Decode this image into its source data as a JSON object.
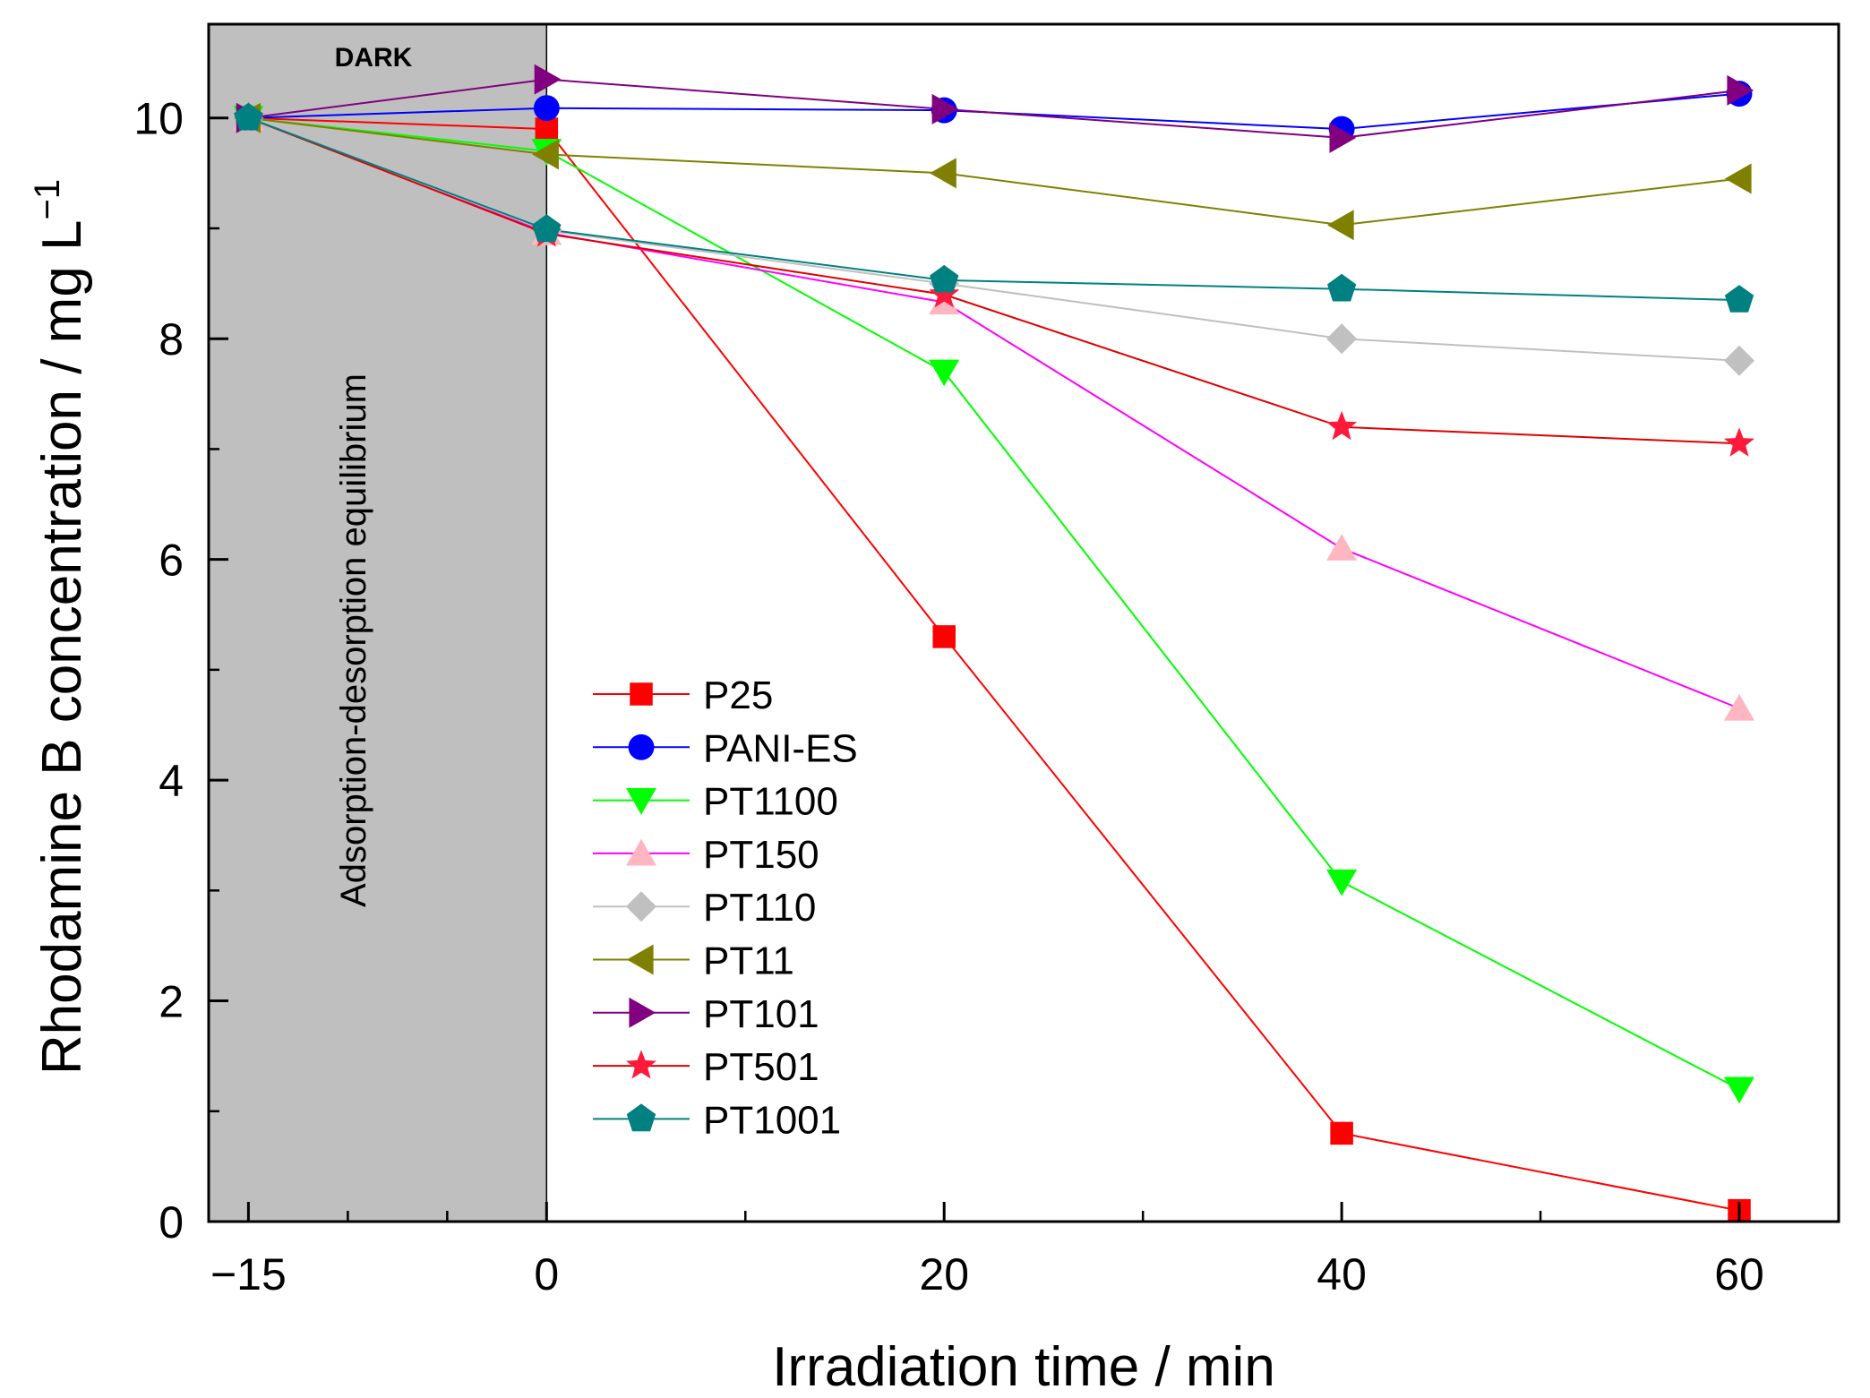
{
  "chart_data": {
    "type": "line",
    "xlabel": "Irradiation time / min",
    "ylabel": "Rhodamine B concentration / mg L",
    "ylabel_superscript": "−1",
    "xlim": [
      -17,
      65
    ],
    "ylim": [
      0,
      10.85
    ],
    "x_ticks": [
      {
        "value": -15,
        "label": "−15"
      },
      {
        "value": 0,
        "label": "0"
      },
      {
        "value": 20,
        "label": "20"
      },
      {
        "value": 40,
        "label": "40"
      },
      {
        "value": 60,
        "label": "60"
      }
    ],
    "x_minor_ticks": [
      -10,
      -5,
      10,
      30,
      50
    ],
    "y_ticks": [
      {
        "value": 0,
        "label": "0"
      },
      {
        "value": 2,
        "label": "2"
      },
      {
        "value": 4,
        "label": "4"
      },
      {
        "value": 6,
        "label": "6"
      },
      {
        "value": 8,
        "label": "8"
      },
      {
        "value": 10,
        "label": "10"
      }
    ],
    "y_minor_ticks": [
      1,
      3,
      5,
      7,
      9
    ],
    "dark_region": {
      "x_start": -17,
      "x_end": 0,
      "label": "DARK",
      "annotation": "Adsorption-desorption equilibrium",
      "color": "#bfbfbf"
    },
    "x": [
      -15,
      0,
      20,
      40,
      60
    ],
    "series": [
      {
        "name": "P25",
        "marker": "square",
        "color": "#ff0000",
        "values": [
          10.0,
          9.9,
          5.3,
          0.8,
          0.1
        ]
      },
      {
        "name": "PANI-ES",
        "marker": "circle",
        "color": "#0000ff",
        "values": [
          10.0,
          10.09,
          10.07,
          9.9,
          10.22
        ]
      },
      {
        "name": "PT1100",
        "marker": "triangle-down",
        "color": "#00ff00",
        "values": [
          10.0,
          9.7,
          7.7,
          3.08,
          1.2
        ]
      },
      {
        "name": "PT150",
        "marker": "triangle-up",
        "color": "#ffb6c1",
        "lineColor": "#ff00ff",
        "values": [
          10.0,
          8.96,
          8.33,
          6.1,
          4.65
        ]
      },
      {
        "name": "PT110",
        "marker": "diamond",
        "color": "#c0c0c0",
        "values": [
          10.0,
          8.98,
          8.5,
          8.0,
          7.8
        ]
      },
      {
        "name": "PT11",
        "marker": "triangle-left",
        "color": "#808000",
        "values": [
          10.0,
          9.67,
          9.5,
          9.03,
          9.45
        ]
      },
      {
        "name": "PT101",
        "marker": "triangle-right",
        "color": "#800080",
        "values": [
          10.0,
          10.35,
          10.08,
          9.82,
          10.25
        ]
      },
      {
        "name": "PT501",
        "marker": "star",
        "color": "#ff1a3c",
        "lineColor": "#e00000",
        "values": [
          10.0,
          8.95,
          8.4,
          7.2,
          7.05
        ]
      },
      {
        "name": "PT1001",
        "marker": "pentagon",
        "color": "#008080",
        "values": [
          10.0,
          8.99,
          8.53,
          8.45,
          8.35
        ]
      }
    ],
    "legend": "center-left"
  }
}
